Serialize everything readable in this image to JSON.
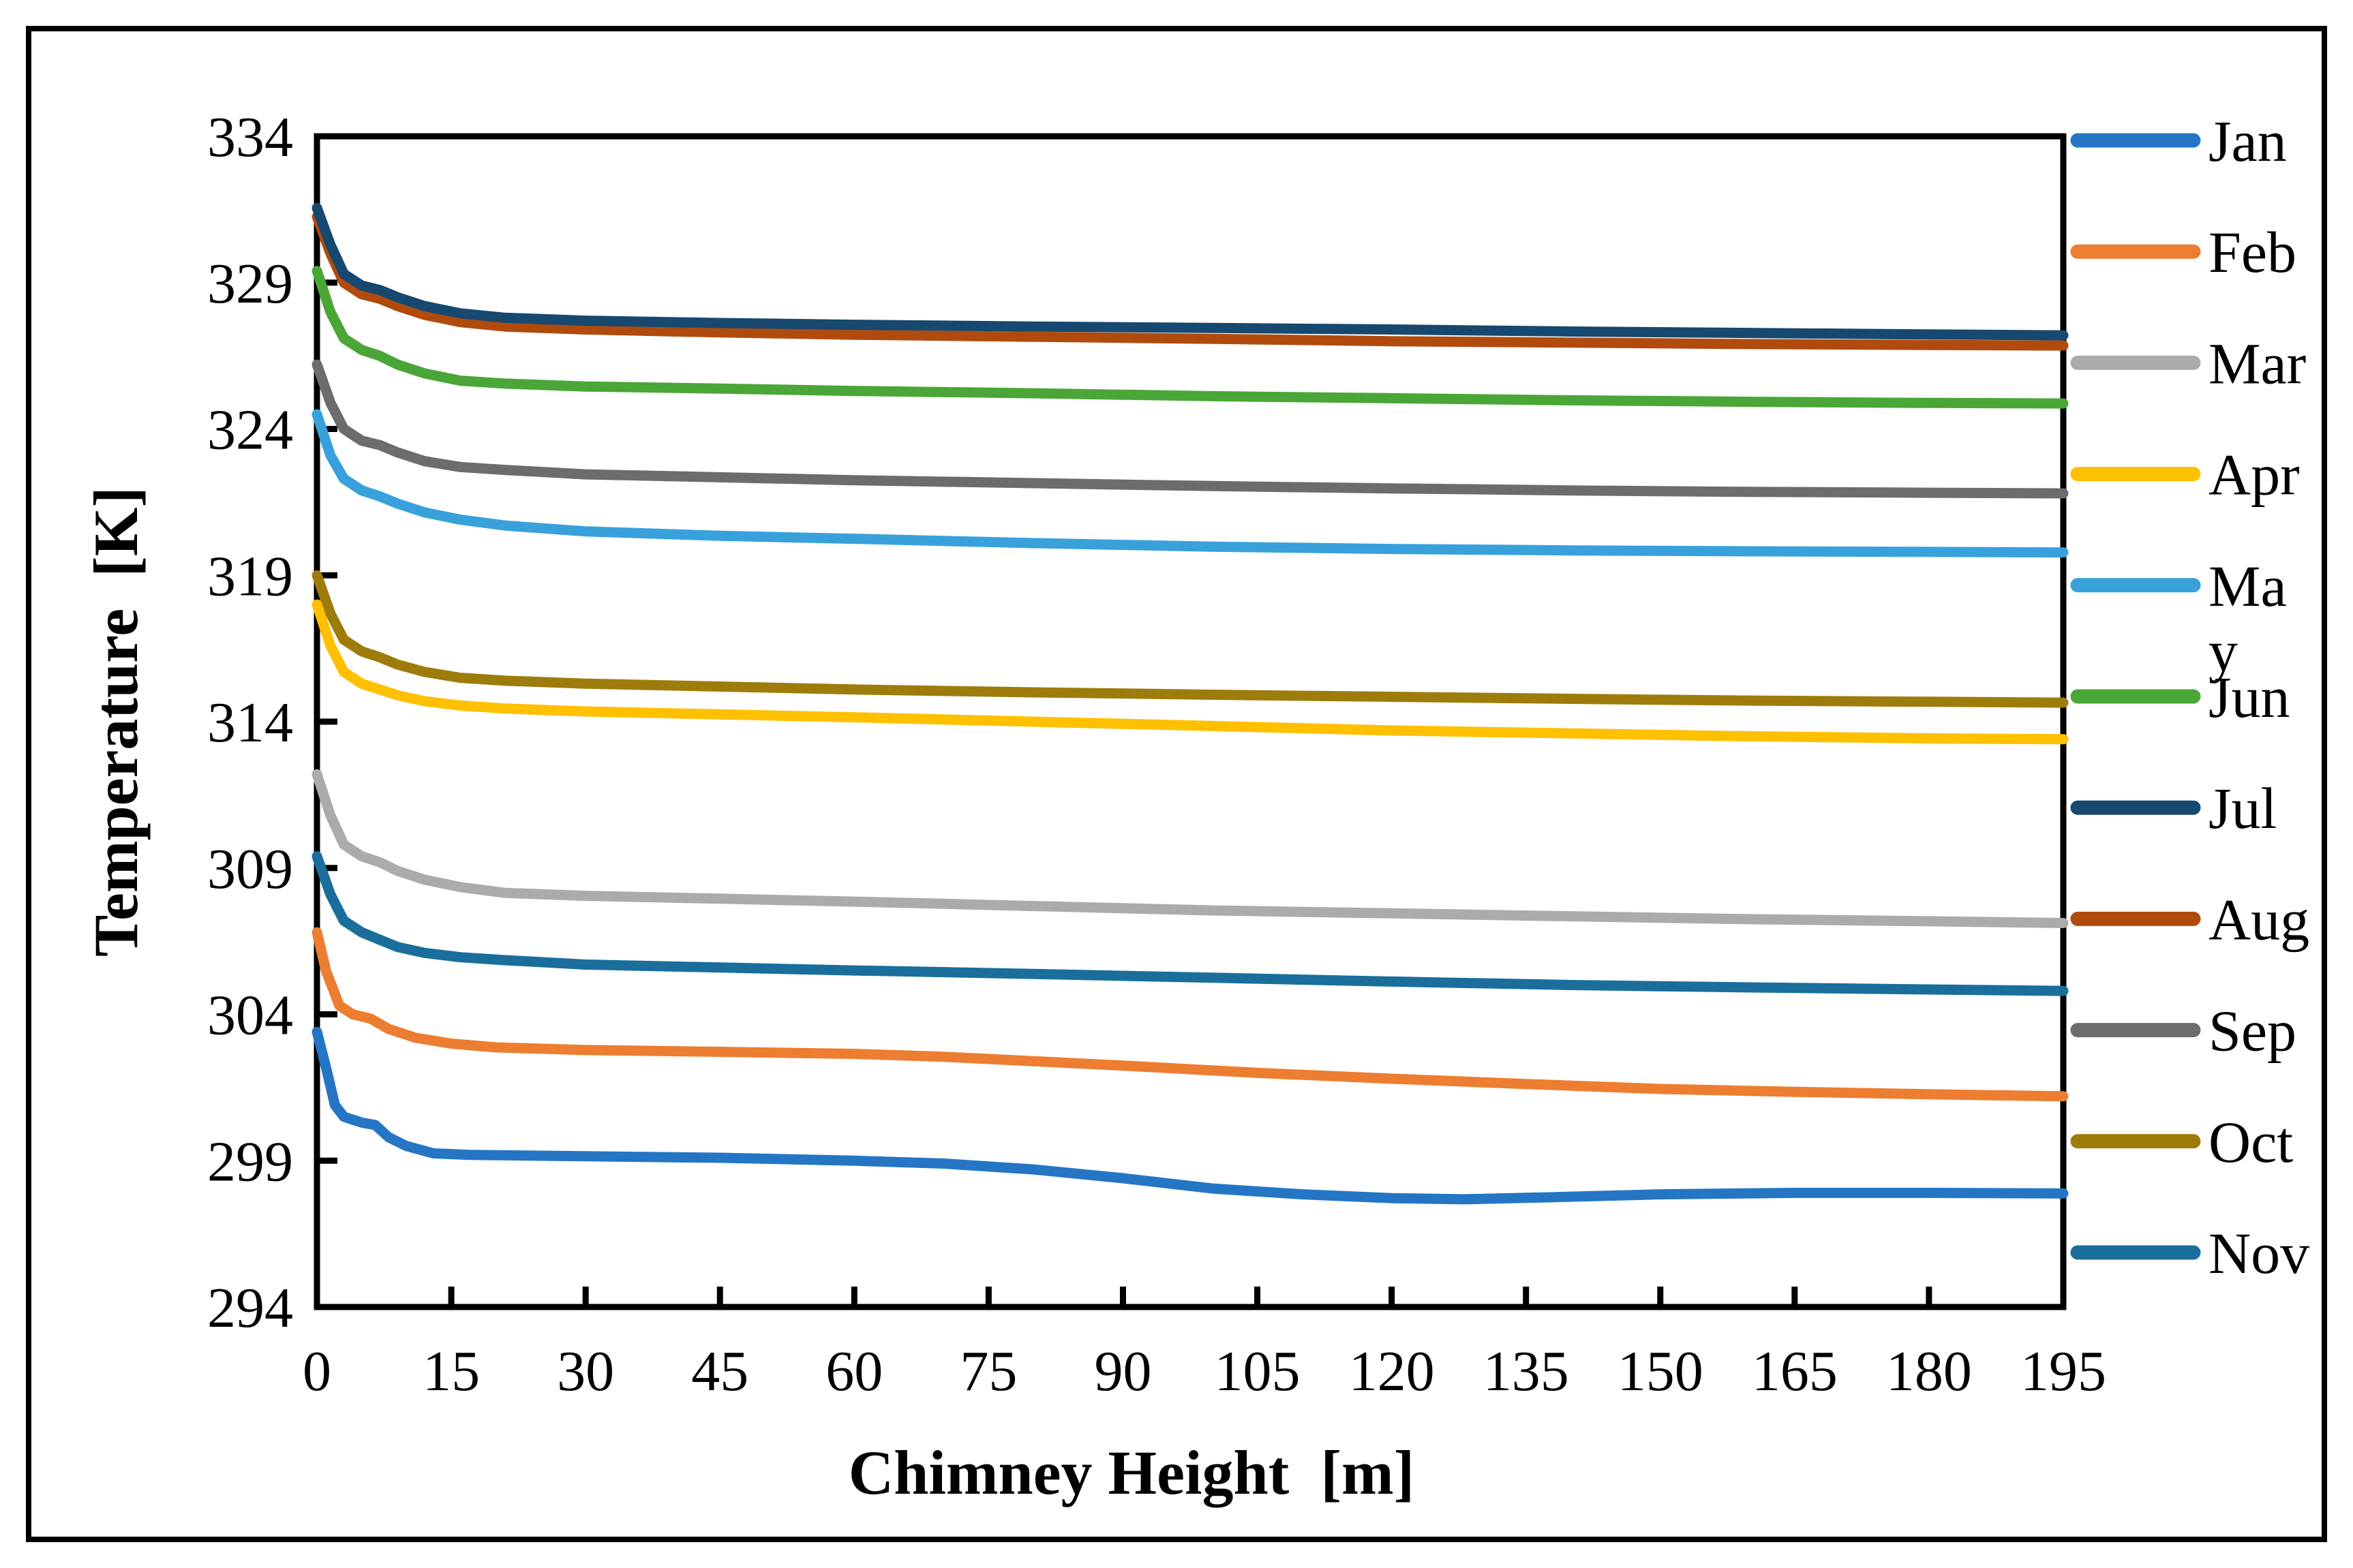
{
  "figure": {
    "background": "#FFFFFF",
    "border_color": "#000000"
  },
  "axes": {
    "y_title": "Temperature  [K]",
    "x_title": "Chimney Height  [m]",
    "y_ticks": [
      294,
      299,
      304,
      309,
      314,
      319,
      324,
      329,
      334
    ],
    "x_ticks": [
      0,
      15,
      30,
      45,
      60,
      75,
      90,
      105,
      120,
      135,
      150,
      165,
      180,
      195
    ]
  },
  "legend": {
    "position": "right",
    "items_order": [
      "Jan",
      "Feb",
      "Mar",
      "Apr",
      "May",
      "Jun",
      "Jul",
      "Aug",
      "Sep",
      "Oct",
      "Nov"
    ]
  },
  "chart_data": {
    "type": "line",
    "title": "",
    "xlabel": "Chimney Height  [m]",
    "ylabel": "Temperature  [K]",
    "xlim": [
      0,
      195
    ],
    "ylim": [
      294,
      334
    ],
    "x_tick_step": 15,
    "y_tick_step": 5,
    "grid": false,
    "legend_position": "right",
    "series": [
      {
        "name": "Jan",
        "color": "#2575C5",
        "points": [
          [
            0,
            303.4
          ],
          [
            1,
            302.2
          ],
          [
            2,
            300.9
          ],
          [
            3,
            300.5
          ],
          [
            5,
            300.3
          ],
          [
            6.5,
            300.22
          ],
          [
            8,
            299.8
          ],
          [
            10,
            299.5
          ],
          [
            13,
            299.25
          ],
          [
            17,
            299.2
          ],
          [
            22,
            299.18
          ],
          [
            30,
            299.15
          ],
          [
            45,
            299.1
          ],
          [
            60,
            299.0
          ],
          [
            70,
            298.9
          ],
          [
            80,
            298.7
          ],
          [
            90,
            298.4
          ],
          [
            100,
            298.05
          ],
          [
            110,
            297.85
          ],
          [
            120,
            297.72
          ],
          [
            128,
            297.68
          ],
          [
            138,
            297.75
          ],
          [
            150,
            297.85
          ],
          [
            165,
            297.9
          ],
          [
            180,
            297.9
          ],
          [
            195,
            297.88
          ]
        ]
      },
      {
        "name": "Feb",
        "color": "#ED7D31",
        "points": [
          [
            0,
            306.8
          ],
          [
            1,
            305.5
          ],
          [
            2.5,
            304.3
          ],
          [
            4,
            304.0
          ],
          [
            6,
            303.85
          ],
          [
            8,
            303.5
          ],
          [
            11,
            303.2
          ],
          [
            15,
            303.0
          ],
          [
            20,
            302.87
          ],
          [
            30,
            302.78
          ],
          [
            45,
            302.72
          ],
          [
            60,
            302.65
          ],
          [
            70,
            302.55
          ],
          [
            80,
            302.4
          ],
          [
            90,
            302.25
          ],
          [
            105,
            302.0
          ],
          [
            120,
            301.8
          ],
          [
            135,
            301.62
          ],
          [
            150,
            301.45
          ],
          [
            165,
            301.35
          ],
          [
            180,
            301.27
          ],
          [
            195,
            301.2
          ]
        ]
      },
      {
        "name": "Mar",
        "color": "#ABABAB",
        "points": [
          [
            0,
            312.2
          ],
          [
            1.5,
            310.8
          ],
          [
            3,
            309.8
          ],
          [
            5,
            309.4
          ],
          [
            7,
            309.2
          ],
          [
            9,
            308.9
          ],
          [
            12,
            308.6
          ],
          [
            16,
            308.35
          ],
          [
            21,
            308.15
          ],
          [
            30,
            308.05
          ],
          [
            45,
            307.95
          ],
          [
            60,
            307.85
          ],
          [
            80,
            307.7
          ],
          [
            100,
            307.55
          ],
          [
            120,
            307.45
          ],
          [
            140,
            307.35
          ],
          [
            160,
            307.25
          ],
          [
            180,
            307.18
          ],
          [
            195,
            307.12
          ]
        ]
      },
      {
        "name": "Apr",
        "color": "#FFC000",
        "points": [
          [
            0,
            318.0
          ],
          [
            1.5,
            316.6
          ],
          [
            3,
            315.7
          ],
          [
            5,
            315.3
          ],
          [
            7,
            315.1
          ],
          [
            9,
            314.9
          ],
          [
            12,
            314.7
          ],
          [
            16,
            314.55
          ],
          [
            21,
            314.45
          ],
          [
            30,
            314.35
          ],
          [
            45,
            314.25
          ],
          [
            60,
            314.15
          ],
          [
            80,
            314.0
          ],
          [
            100,
            313.85
          ],
          [
            120,
            313.7
          ],
          [
            140,
            313.6
          ],
          [
            160,
            313.5
          ],
          [
            180,
            313.43
          ],
          [
            195,
            313.4
          ]
        ]
      },
      {
        "name": "May",
        "color": "#38A1DB",
        "legend_lines": [
          "Ma",
          "y"
        ],
        "points": [
          [
            0,
            324.5
          ],
          [
            1.5,
            323.1
          ],
          [
            3,
            322.3
          ],
          [
            5,
            321.9
          ],
          [
            7,
            321.7
          ],
          [
            9,
            321.45
          ],
          [
            12,
            321.15
          ],
          [
            16,
            320.9
          ],
          [
            21,
            320.7
          ],
          [
            30,
            320.5
          ],
          [
            45,
            320.35
          ],
          [
            60,
            320.25
          ],
          [
            80,
            320.1
          ],
          [
            100,
            319.98
          ],
          [
            120,
            319.9
          ],
          [
            140,
            319.85
          ],
          [
            160,
            319.82
          ],
          [
            180,
            319.8
          ],
          [
            195,
            319.78
          ]
        ]
      },
      {
        "name": "Jun",
        "color": "#4AA637",
        "points": [
          [
            0,
            329.4
          ],
          [
            1.5,
            328.0
          ],
          [
            3,
            327.1
          ],
          [
            5,
            326.7
          ],
          [
            7,
            326.5
          ],
          [
            9,
            326.2
          ],
          [
            12,
            325.9
          ],
          [
            16,
            325.65
          ],
          [
            21,
            325.55
          ],
          [
            30,
            325.45
          ],
          [
            45,
            325.38
          ],
          [
            60,
            325.3
          ],
          [
            80,
            325.22
          ],
          [
            100,
            325.12
          ],
          [
            120,
            325.05
          ],
          [
            140,
            324.98
          ],
          [
            160,
            324.93
          ],
          [
            180,
            324.89
          ],
          [
            195,
            324.87
          ]
        ]
      },
      {
        "name": "Jul",
        "color": "#17486F",
        "points": [
          [
            0,
            331.55
          ],
          [
            1.5,
            330.3
          ],
          [
            3,
            329.3
          ],
          [
            5,
            328.9
          ],
          [
            7,
            328.75
          ],
          [
            9,
            328.5
          ],
          [
            12,
            328.2
          ],
          [
            16,
            327.95
          ],
          [
            21,
            327.8
          ],
          [
            30,
            327.7
          ],
          [
            45,
            327.62
          ],
          [
            60,
            327.56
          ],
          [
            80,
            327.5
          ],
          [
            100,
            327.45
          ],
          [
            120,
            327.4
          ],
          [
            140,
            327.33
          ],
          [
            160,
            327.28
          ],
          [
            180,
            327.23
          ],
          [
            195,
            327.2
          ]
        ]
      },
      {
        "name": "Aug",
        "color": "#B04B0D",
        "points": [
          [
            0,
            331.25
          ],
          [
            1.5,
            330.0
          ],
          [
            3,
            329.0
          ],
          [
            5,
            328.6
          ],
          [
            7,
            328.45
          ],
          [
            9,
            328.2
          ],
          [
            12,
            327.9
          ],
          [
            16,
            327.65
          ],
          [
            21,
            327.5
          ],
          [
            30,
            327.4
          ],
          [
            45,
            327.3
          ],
          [
            60,
            327.22
          ],
          [
            80,
            327.15
          ],
          [
            100,
            327.08
          ],
          [
            120,
            327.0
          ],
          [
            140,
            326.95
          ],
          [
            160,
            326.9
          ],
          [
            180,
            326.87
          ],
          [
            195,
            326.85
          ]
        ]
      },
      {
        "name": "Sep",
        "color": "#6C6C6C",
        "points": [
          [
            0,
            326.2
          ],
          [
            1.5,
            324.9
          ],
          [
            3,
            324.0
          ],
          [
            5,
            323.6
          ],
          [
            7,
            323.45
          ],
          [
            9,
            323.2
          ],
          [
            12,
            322.9
          ],
          [
            16,
            322.7
          ],
          [
            21,
            322.6
          ],
          [
            30,
            322.45
          ],
          [
            45,
            322.35
          ],
          [
            60,
            322.25
          ],
          [
            80,
            322.15
          ],
          [
            100,
            322.05
          ],
          [
            120,
            321.97
          ],
          [
            140,
            321.9
          ],
          [
            160,
            321.85
          ],
          [
            180,
            321.82
          ],
          [
            195,
            321.8
          ]
        ]
      },
      {
        "name": "Oct",
        "color": "#9E7C0B",
        "points": [
          [
            0,
            319.0
          ],
          [
            1.5,
            317.7
          ],
          [
            3,
            316.8
          ],
          [
            5,
            316.4
          ],
          [
            7,
            316.2
          ],
          [
            9,
            315.95
          ],
          [
            12,
            315.7
          ],
          [
            16,
            315.5
          ],
          [
            21,
            315.4
          ],
          [
            30,
            315.3
          ],
          [
            45,
            315.2
          ],
          [
            60,
            315.1
          ],
          [
            80,
            315.0
          ],
          [
            100,
            314.92
          ],
          [
            120,
            314.85
          ],
          [
            140,
            314.78
          ],
          [
            160,
            314.72
          ],
          [
            180,
            314.68
          ],
          [
            195,
            314.65
          ]
        ]
      },
      {
        "name": "Nov",
        "color": "#1A6E9C",
        "points": [
          [
            0,
            309.4
          ],
          [
            1.5,
            308.1
          ],
          [
            3,
            307.2
          ],
          [
            5,
            306.8
          ],
          [
            7,
            306.55
          ],
          [
            9,
            306.3
          ],
          [
            12,
            306.1
          ],
          [
            16,
            305.95
          ],
          [
            21,
            305.85
          ],
          [
            30,
            305.7
          ],
          [
            45,
            305.6
          ],
          [
            60,
            305.5
          ],
          [
            80,
            305.38
          ],
          [
            100,
            305.25
          ],
          [
            120,
            305.12
          ],
          [
            140,
            305.0
          ],
          [
            160,
            304.92
          ],
          [
            180,
            304.85
          ],
          [
            195,
            304.8
          ]
        ]
      }
    ]
  }
}
